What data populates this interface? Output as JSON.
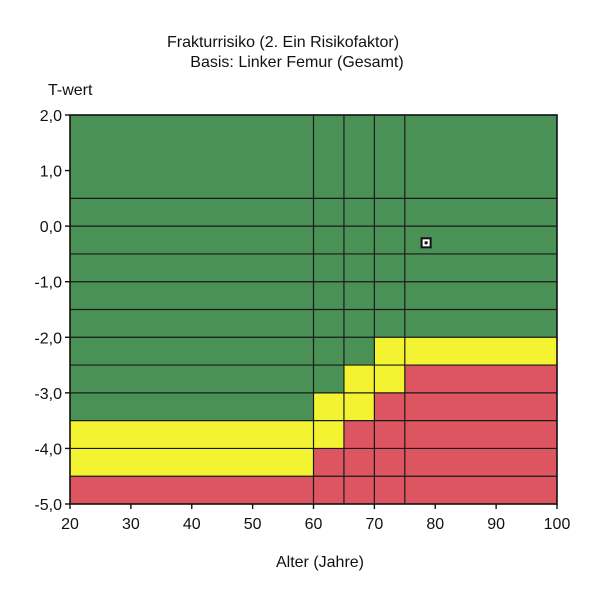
{
  "chart_data": {
    "type": "heatmap",
    "title_line1": "Frakturrisiko (2. Ein Risikofaktor)",
    "title_line2": "Basis: Linker Femur (Gesamt)",
    "xlabel": "Alter (Jahre)",
    "ylabel": "T-wert",
    "xlim": [
      20,
      100
    ],
    "ylim": [
      -5.0,
      2.0
    ],
    "x_ticks": [
      20,
      30,
      40,
      50,
      60,
      70,
      80,
      90,
      100
    ],
    "y_ticks": [
      2.0,
      1.0,
      0.0,
      -1.0,
      -2.0,
      -3.0,
      -4.0,
      -5.0
    ],
    "x_tick_labels": [
      "20",
      "30",
      "40",
      "50",
      "60",
      "70",
      "80",
      "90",
      "100"
    ],
    "y_tick_labels": [
      "2,0",
      "1,0",
      "0,0",
      "-1,0",
      "-2,0",
      "-3,0",
      "-4,0",
      "-5,0"
    ],
    "age_bands": [
      20,
      60,
      65,
      70,
      75,
      100
    ],
    "t_bands": [
      2.0,
      0.5,
      0.0,
      -0.5,
      -1.0,
      -1.5,
      -2.0,
      -2.5,
      -3.0,
      -3.5,
      -4.0,
      -4.5,
      -5.0
    ],
    "colors": {
      "low": "#4a9156",
      "medium": "#f3f332",
      "high": "#dd5560",
      "grid": "#1a1a1a",
      "frame": "#111111"
    },
    "regions": [
      {
        "x0": 20,
        "x1": 60,
        "y0": -3.5,
        "y1": 2.0,
        "risk": "low"
      },
      {
        "x0": 20,
        "x1": 60,
        "y0": -4.5,
        "y1": -3.5,
        "risk": "medium"
      },
      {
        "x0": 20,
        "x1": 60,
        "y0": -5.0,
        "y1": -4.5,
        "risk": "high"
      },
      {
        "x0": 60,
        "x1": 65,
        "y0": -3.0,
        "y1": 2.0,
        "risk": "low"
      },
      {
        "x0": 60,
        "x1": 65,
        "y0": -4.0,
        "y1": -3.0,
        "risk": "medium"
      },
      {
        "x0": 60,
        "x1": 65,
        "y0": -5.0,
        "y1": -4.0,
        "risk": "high"
      },
      {
        "x0": 65,
        "x1": 70,
        "y0": -2.5,
        "y1": 2.0,
        "risk": "low"
      },
      {
        "x0": 65,
        "x1": 70,
        "y0": -3.5,
        "y1": -2.5,
        "risk": "medium"
      },
      {
        "x0": 65,
        "x1": 70,
        "y0": -5.0,
        "y1": -3.5,
        "risk": "high"
      },
      {
        "x0": 70,
        "x1": 75,
        "y0": -2.0,
        "y1": 2.0,
        "risk": "low"
      },
      {
        "x0": 70,
        "x1": 75,
        "y0": -3.0,
        "y1": -2.0,
        "risk": "medium"
      },
      {
        "x0": 70,
        "x1": 75,
        "y0": -5.0,
        "y1": -3.0,
        "risk": "high"
      },
      {
        "x0": 75,
        "x1": 100,
        "y0": -2.0,
        "y1": 2.0,
        "risk": "low"
      },
      {
        "x0": 75,
        "x1": 100,
        "y0": -2.5,
        "y1": -2.0,
        "risk": "medium"
      },
      {
        "x0": 75,
        "x1": 100,
        "y0": -5.0,
        "y1": -2.5,
        "risk": "high"
      }
    ],
    "points": [
      {
        "x": 78.5,
        "y": -0.3
      }
    ]
  }
}
